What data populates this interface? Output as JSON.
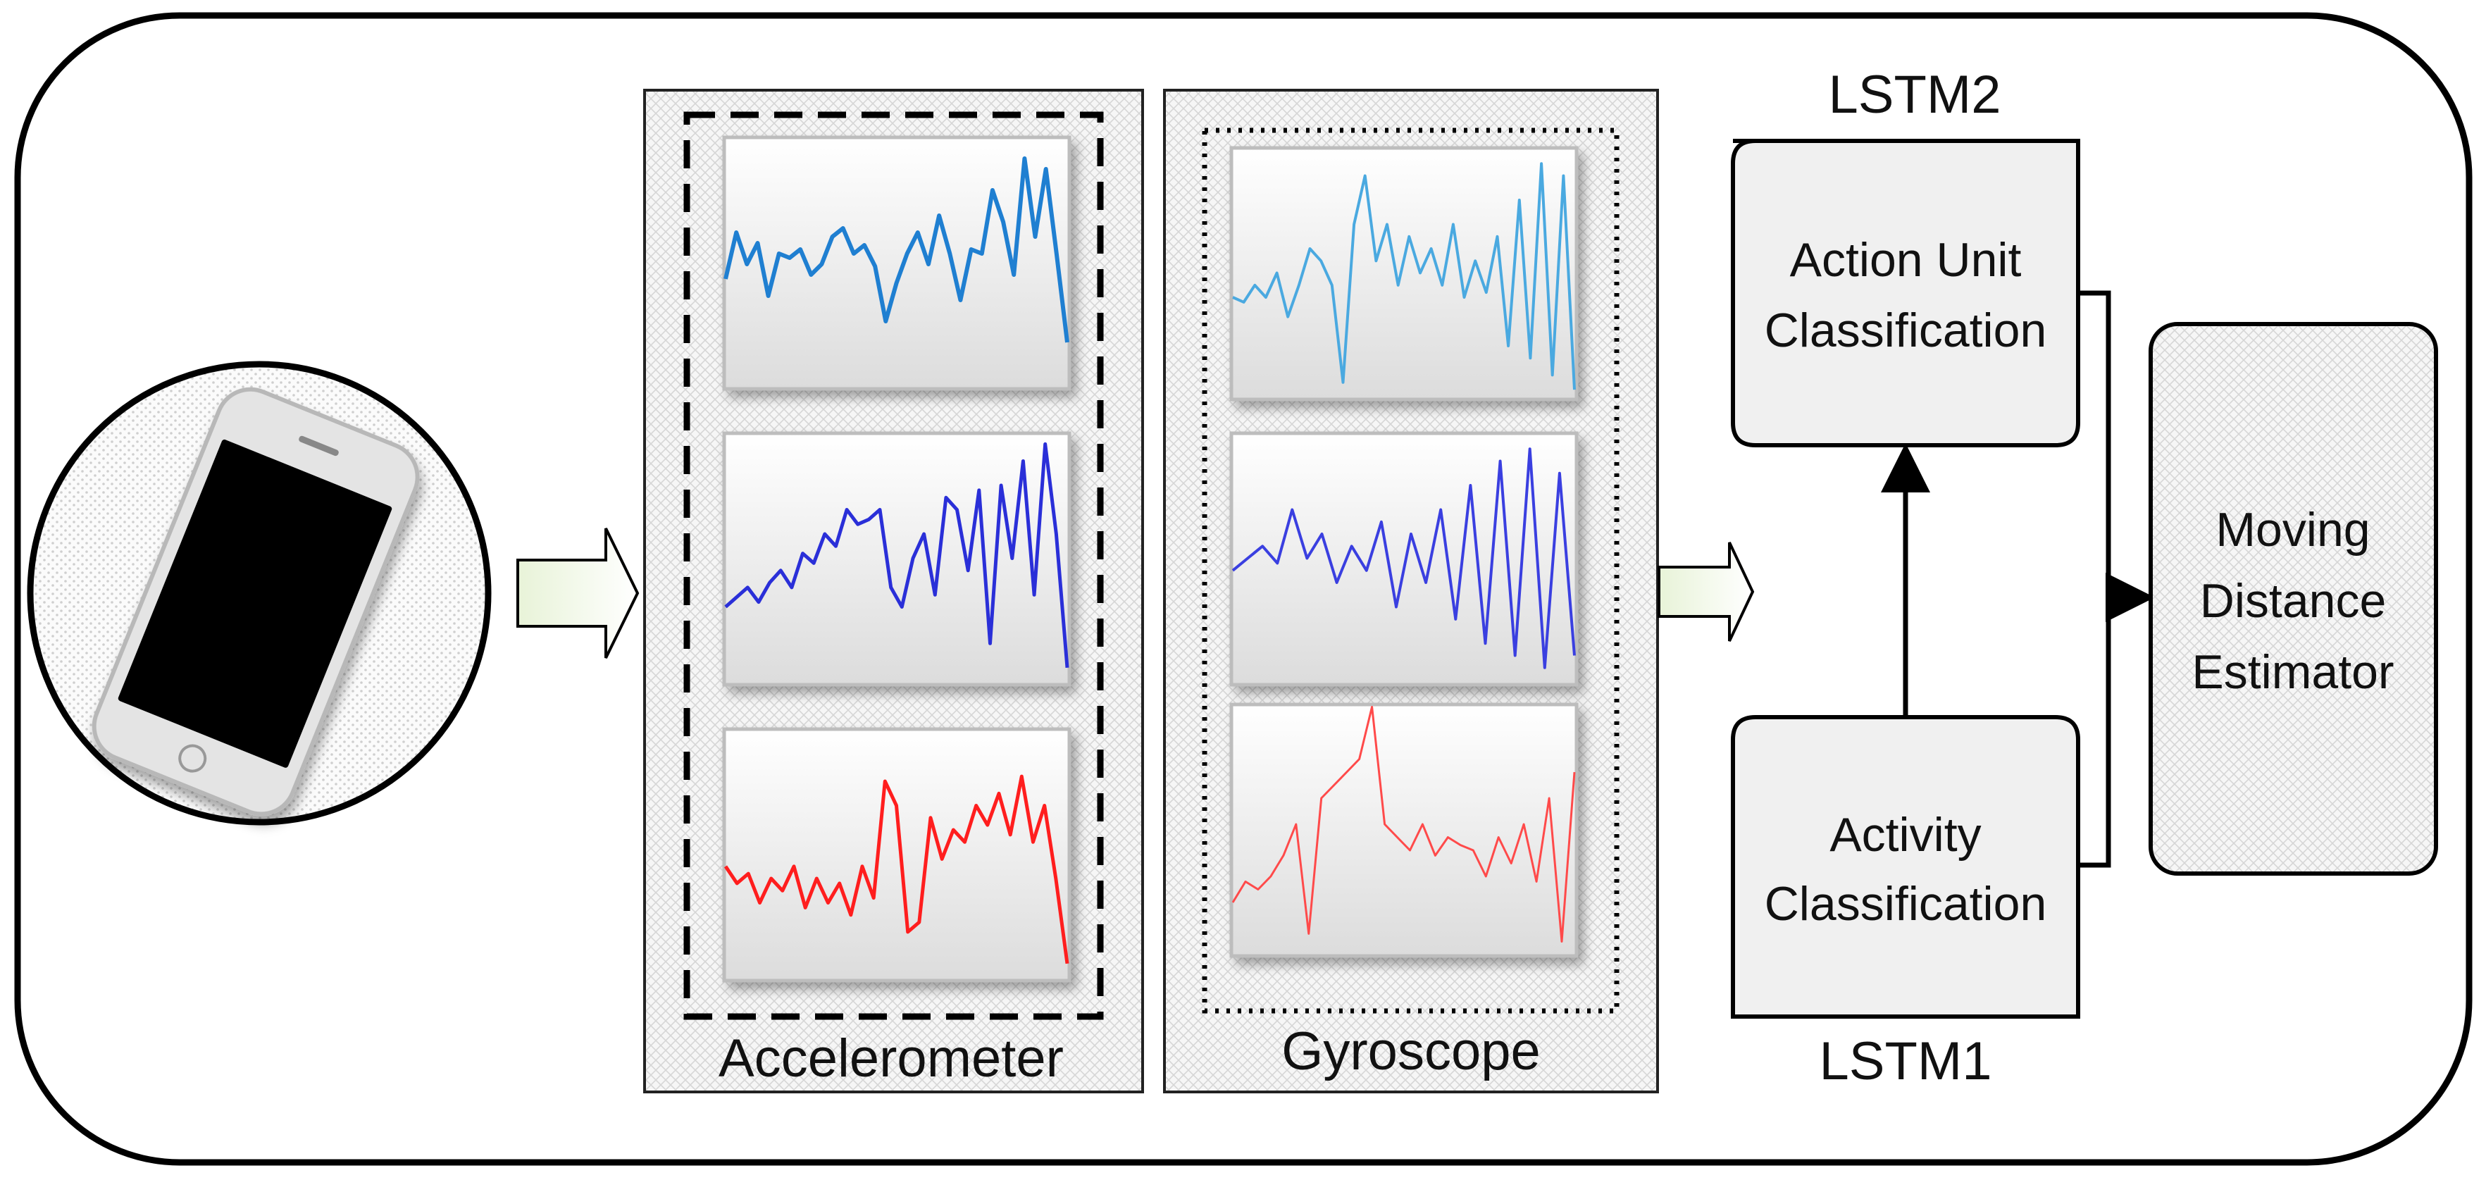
{
  "sensors": {
    "accelerometer_label": "Accelerometer",
    "gyroscope_label": "Gyroscope"
  },
  "models": {
    "lstm2_label": "LSTM2",
    "lstm1_label": "LSTM1",
    "action_unit": {
      "line1": "Action Unit",
      "line2": "Classification"
    },
    "activity": {
      "line1": "Activity",
      "line2": "Classification"
    }
  },
  "estimator": {
    "line1": "Moving",
    "line2": "Distance",
    "line3": "Estimator"
  },
  "colors": {
    "signal_1": "#1f7fd1",
    "signal_2": "#2a2fd8",
    "signal_3": "#ff1e1e",
    "gyro_signal_1": "#4aa9e0",
    "gyro_signal_2": "#3a3fe0",
    "gyro_signal_3": "#ff4a4a",
    "box_fill": "#f0f0f0",
    "outline": "#000000"
  },
  "signals": {
    "accel_1": [
      0.62,
      0.4,
      0.55,
      0.45,
      0.7,
      0.5,
      0.52,
      0.48,
      0.6,
      0.55,
      0.42,
      0.38,
      0.5,
      0.46,
      0.56,
      0.82,
      0.64,
      0.5,
      0.4,
      0.55,
      0.32,
      0.5,
      0.72,
      0.48,
      0.5,
      0.2,
      0.35,
      0.6,
      0.05,
      0.42,
      0.1,
      0.5,
      0.92
    ],
    "accel_2": [
      0.7,
      0.66,
      0.62,
      0.68,
      0.6,
      0.55,
      0.62,
      0.48,
      0.52,
      0.4,
      0.45,
      0.3,
      0.36,
      0.34,
      0.3,
      0.62,
      0.7,
      0.5,
      0.4,
      0.65,
      0.25,
      0.3,
      0.55,
      0.22,
      0.85,
      0.2,
      0.5,
      0.1,
      0.65,
      0.03,
      0.4,
      0.95
    ],
    "accel_3": [
      0.55,
      0.62,
      0.58,
      0.7,
      0.6,
      0.65,
      0.55,
      0.72,
      0.6,
      0.7,
      0.62,
      0.75,
      0.55,
      0.68,
      0.2,
      0.3,
      0.82,
      0.78,
      0.35,
      0.52,
      0.4,
      0.45,
      0.3,
      0.38,
      0.25,
      0.42,
      0.18,
      0.45,
      0.3,
      0.6,
      0.95
    ],
    "gyro_1": [
      0.6,
      0.62,
      0.55,
      0.6,
      0.5,
      0.68,
      0.55,
      0.4,
      0.45,
      0.55,
      0.95,
      0.3,
      0.1,
      0.45,
      0.3,
      0.55,
      0.35,
      0.5,
      0.4,
      0.55,
      0.3,
      0.6,
      0.45,
      0.58,
      0.35,
      0.8,
      0.2,
      0.85,
      0.05,
      0.92,
      0.1,
      0.98
    ],
    "gyro_2": [
      0.55,
      0.5,
      0.45,
      0.52,
      0.3,
      0.5,
      0.4,
      0.6,
      0.45,
      0.55,
      0.35,
      0.7,
      0.4,
      0.6,
      0.3,
      0.75,
      0.2,
      0.85,
      0.1,
      0.9,
      0.05,
      0.95,
      0.15,
      0.9
    ],
    "gyro_3": [
      0.8,
      0.72,
      0.75,
      0.7,
      0.62,
      0.5,
      0.92,
      0.4,
      0.35,
      0.3,
      0.25,
      0.05,
      0.5,
      0.55,
      0.6,
      0.5,
      0.62,
      0.55,
      0.58,
      0.6,
      0.7,
      0.55,
      0.65,
      0.5,
      0.72,
      0.4,
      0.95,
      0.3
    ]
  }
}
